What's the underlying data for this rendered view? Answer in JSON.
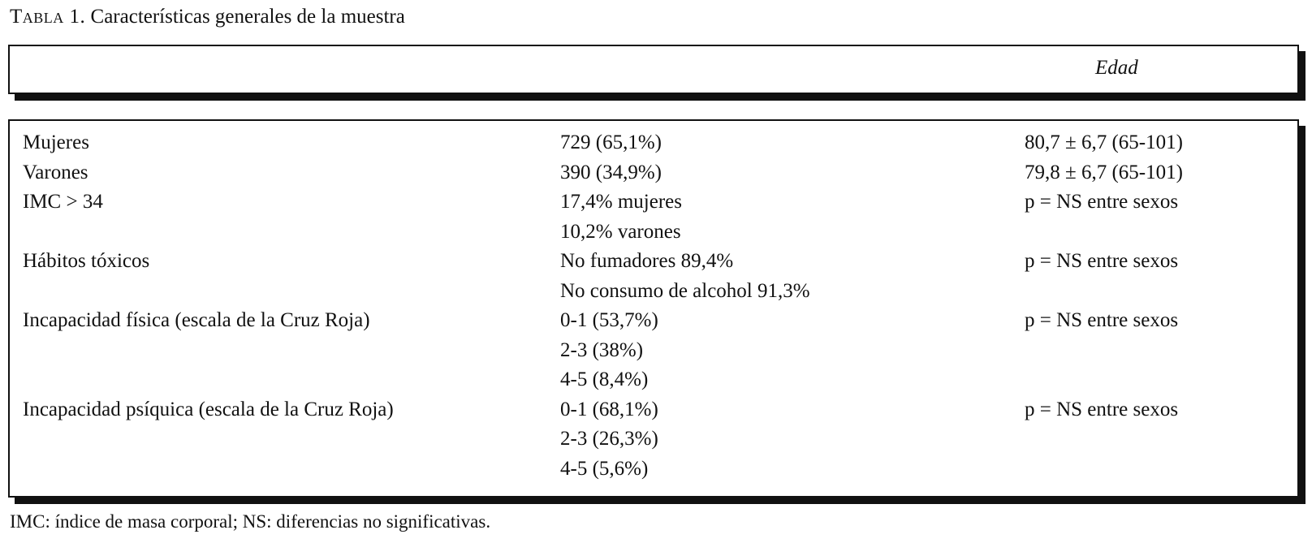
{
  "caption": {
    "label": "Tabla 1.",
    "text": "Características generales de la muestra"
  },
  "header": {
    "column_label": "Edad"
  },
  "rows": [
    {
      "label": "Mujeres",
      "values": [
        "729 (65,1%)"
      ],
      "age": "80,7 ± 6,7 (65-101)"
    },
    {
      "label": "Varones",
      "values": [
        "390 (34,9%)"
      ],
      "age": "79,8 ± 6,7 (65-101)"
    },
    {
      "label": "IMC > 34",
      "values": [
        "17,4% mujeres",
        "10,2% varones"
      ],
      "age": "p = NS entre sexos"
    },
    {
      "label": "Hábitos tóxicos",
      "values": [
        "No fumadores 89,4%",
        "No consumo de alcohol 91,3%"
      ],
      "age": "p = NS entre sexos"
    },
    {
      "label": "Incapacidad física (escala de la Cruz Roja)",
      "values": [
        "0-1 (53,7%)",
        "2-3 (38%)",
        "4-5 (8,4%)"
      ],
      "age": "p = NS entre sexos"
    },
    {
      "label": "Incapacidad psíquica (escala de la Cruz Roja)",
      "values": [
        "0-1 (68,1%)",
        "2-3 (26,3%)",
        "4-5 (5,6%)"
      ],
      "age": "p = NS entre sexos"
    }
  ],
  "footnote": "IMC: índice de masa corporal; NS: diferencias no significativas."
}
